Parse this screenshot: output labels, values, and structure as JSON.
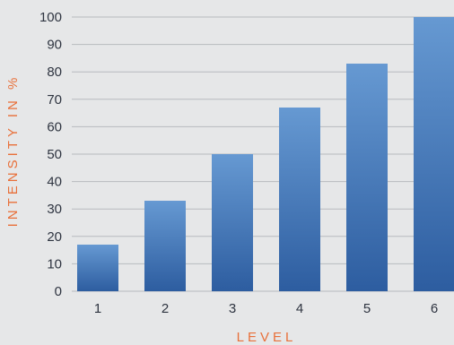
{
  "chart_data": {
    "type": "bar",
    "categories": [
      "1",
      "2",
      "3",
      "4",
      "5",
      "6"
    ],
    "values": [
      17,
      33,
      50,
      67,
      83,
      100
    ],
    "title": "",
    "xlabel": "LEVEL",
    "ylabel": "INTENSITY IN %",
    "ylim": [
      0,
      100
    ],
    "yticks": [
      0,
      10,
      20,
      30,
      40,
      50,
      60,
      70,
      80,
      90,
      100
    ],
    "grid": true,
    "colors": {
      "bar_top": "#6699d2",
      "bar_bottom": "#2d5da0",
      "axis_title": "#e8703a",
      "tick_label": "#2e3440",
      "grid": "#b7babe",
      "background": "#e6e7e8"
    }
  }
}
